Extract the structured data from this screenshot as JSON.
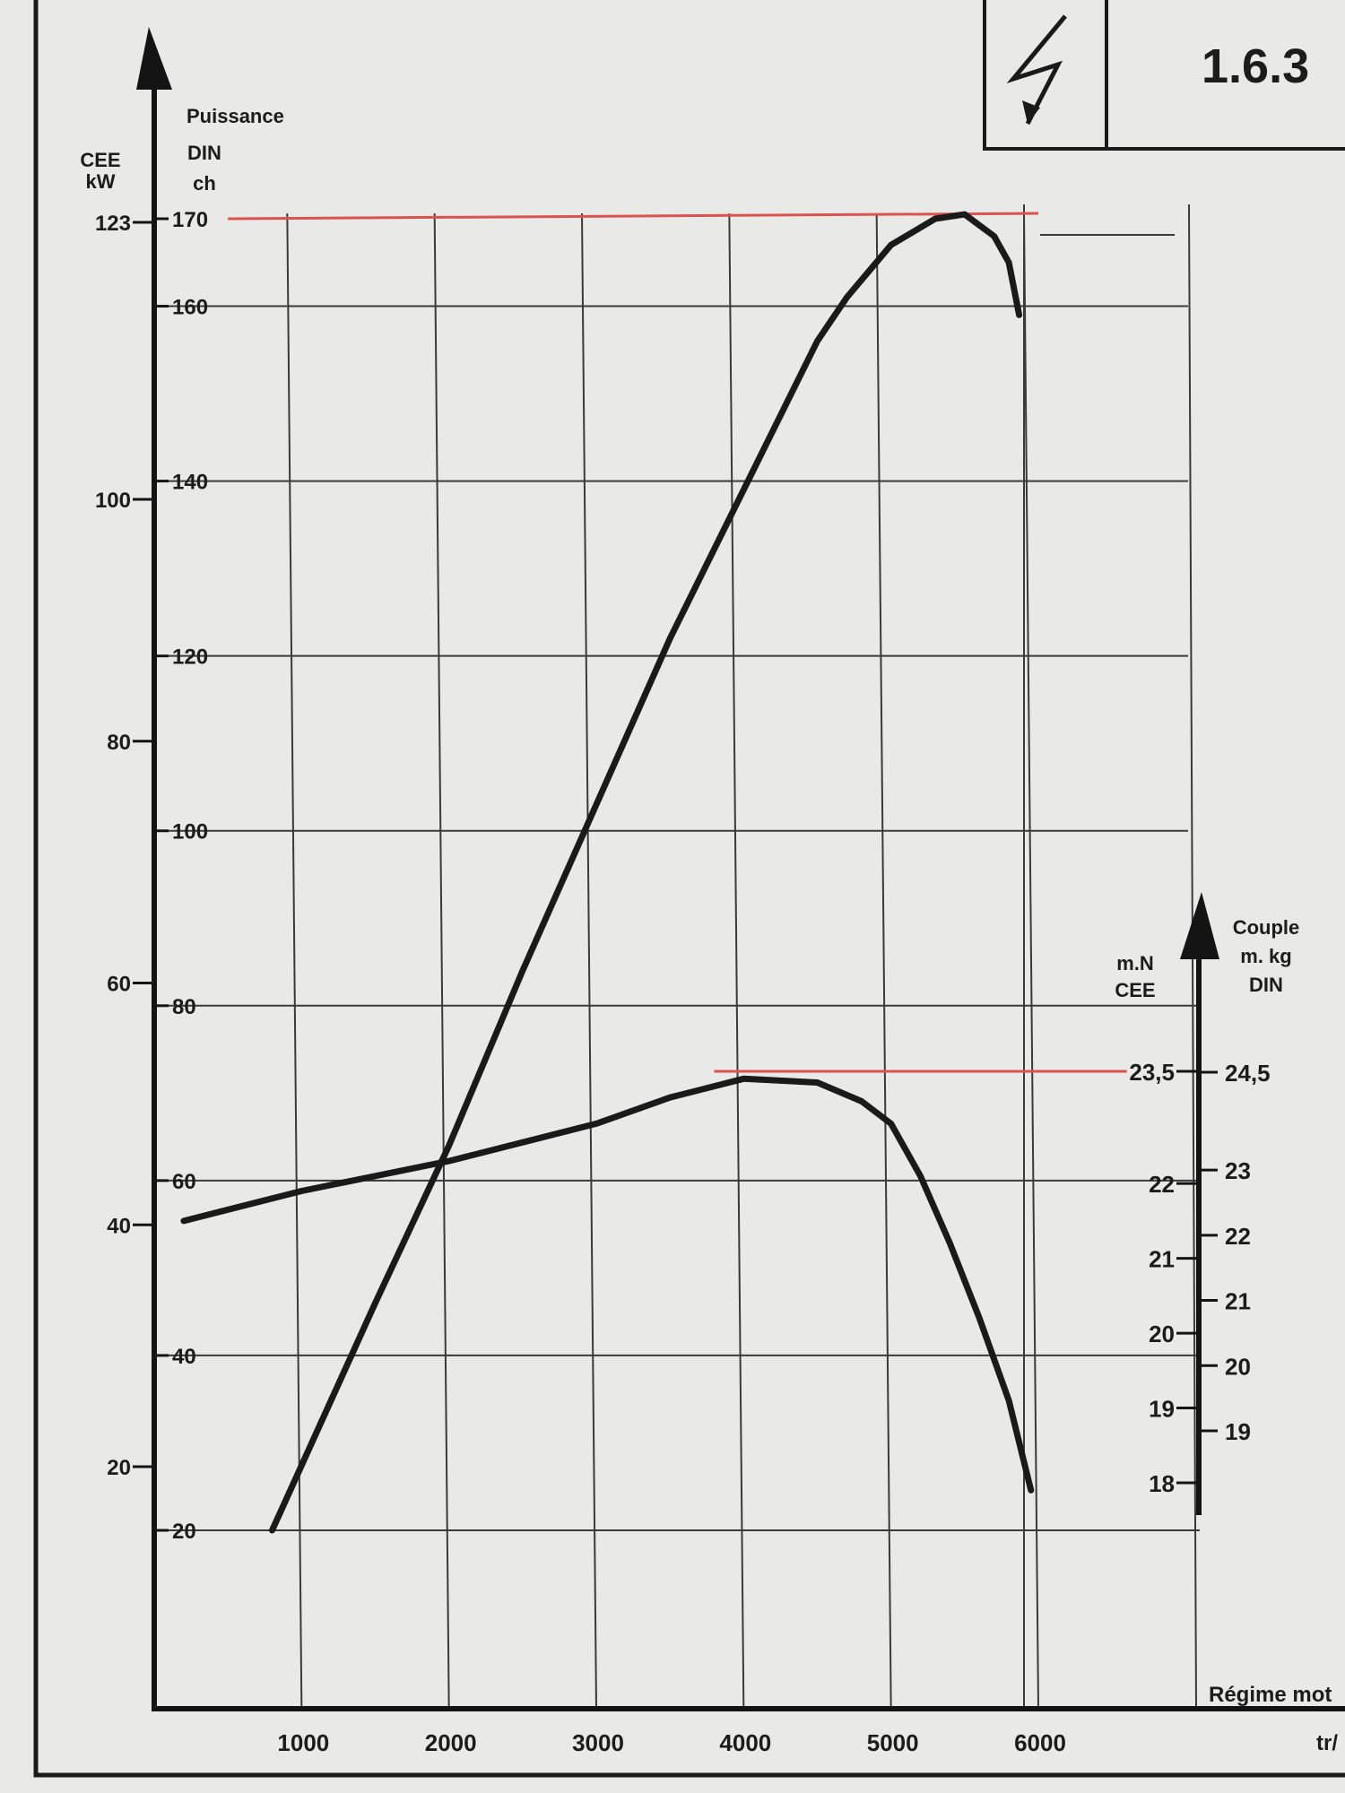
{
  "header": {
    "code": "1.6.3",
    "icon": "lightning-bolt-icon"
  },
  "colors": {
    "reference_line": "#d9534f",
    "curve": "#1a1a1a",
    "grid": "#3a3a3a",
    "background": "#e9e9e7"
  },
  "chart_data": {
    "type": "line",
    "title": "",
    "xlabel": "Régime mot",
    "xunit": "tr/",
    "x_ticks": [
      1000,
      2000,
      3000,
      4000,
      5000,
      6000
    ],
    "xlim": [
      0,
      6500
    ],
    "axes": {
      "left_outer": {
        "label": [
          "CEE",
          "kW"
        ],
        "ticks": [
          20,
          40,
          60,
          80,
          100,
          123
        ]
      },
      "left_inner": {
        "label": [
          "Puissance",
          "DIN",
          "ch"
        ],
        "ticks": [
          20,
          40,
          60,
          80,
          100,
          120,
          140,
          160,
          170
        ]
      },
      "right_inner": {
        "label": [
          "m.N",
          "CEE"
        ],
        "ticks": [
          18,
          19,
          20,
          21,
          22,
          "23,5"
        ]
      },
      "right_outer": {
        "label": [
          "Couple",
          "m. kg",
          "DIN"
        ],
        "ticks": [
          19,
          20,
          21,
          22,
          23,
          "24,5"
        ]
      }
    },
    "grid": true,
    "series": [
      {
        "axis": "left_inner",
        "x": [
          800,
          1500,
          2000,
          2500,
          3000,
          3500,
          4000,
          4500,
          4700,
          5000,
          5300,
          5500,
          5700,
          5800,
          5870
        ],
        "y": [
          20,
          46,
          64,
          84,
          103,
          122,
          139,
          156,
          161,
          167,
          170,
          170.5,
          168,
          165,
          159
        ]
      },
      {
        "axis": "right_inner",
        "x": [
          200,
          1000,
          2000,
          3000,
          3500,
          4000,
          4500,
          4800,
          5000,
          5200,
          5400,
          5600,
          5800,
          5950
        ],
        "y": [
          21.5,
          21.9,
          22.3,
          22.8,
          23.15,
          23.4,
          23.35,
          23.1,
          22.8,
          22.1,
          21.2,
          20.2,
          19.1,
          17.9
        ]
      }
    ],
    "reference_lines": [
      {
        "axis": "left_inner",
        "value": 170,
        "from_x": 500,
        "to_x": 6000
      },
      {
        "axis": "right_inner",
        "value": 23.5,
        "from_x": 3800,
        "to_x": 6600
      }
    ]
  }
}
